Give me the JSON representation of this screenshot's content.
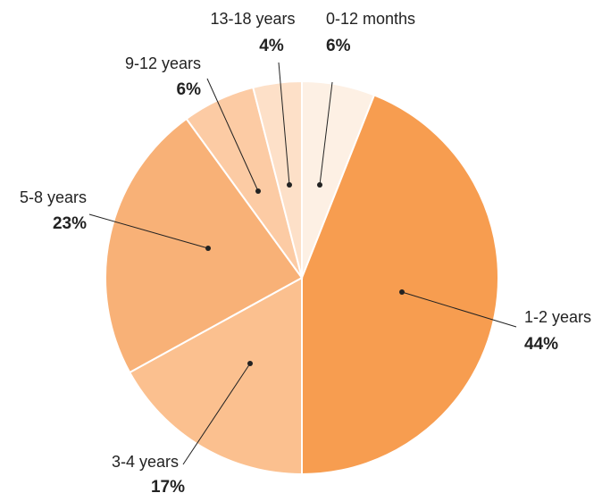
{
  "chart_data": {
    "type": "pie",
    "categories": [
      "0-12 months",
      "1-2 years",
      "3-4 years",
      "5-8 years",
      "9-12 years",
      "13-18 years"
    ],
    "values": [
      6,
      44,
      17,
      23,
      6,
      4
    ],
    "value_labels": [
      "6%",
      "44%",
      "17%",
      "23%",
      "6%",
      "4%"
    ],
    "colors": [
      "#fdf0e4",
      "#f79d50",
      "#fbc08f",
      "#f8b177",
      "#fccba4",
      "#fde0c8"
    ]
  }
}
